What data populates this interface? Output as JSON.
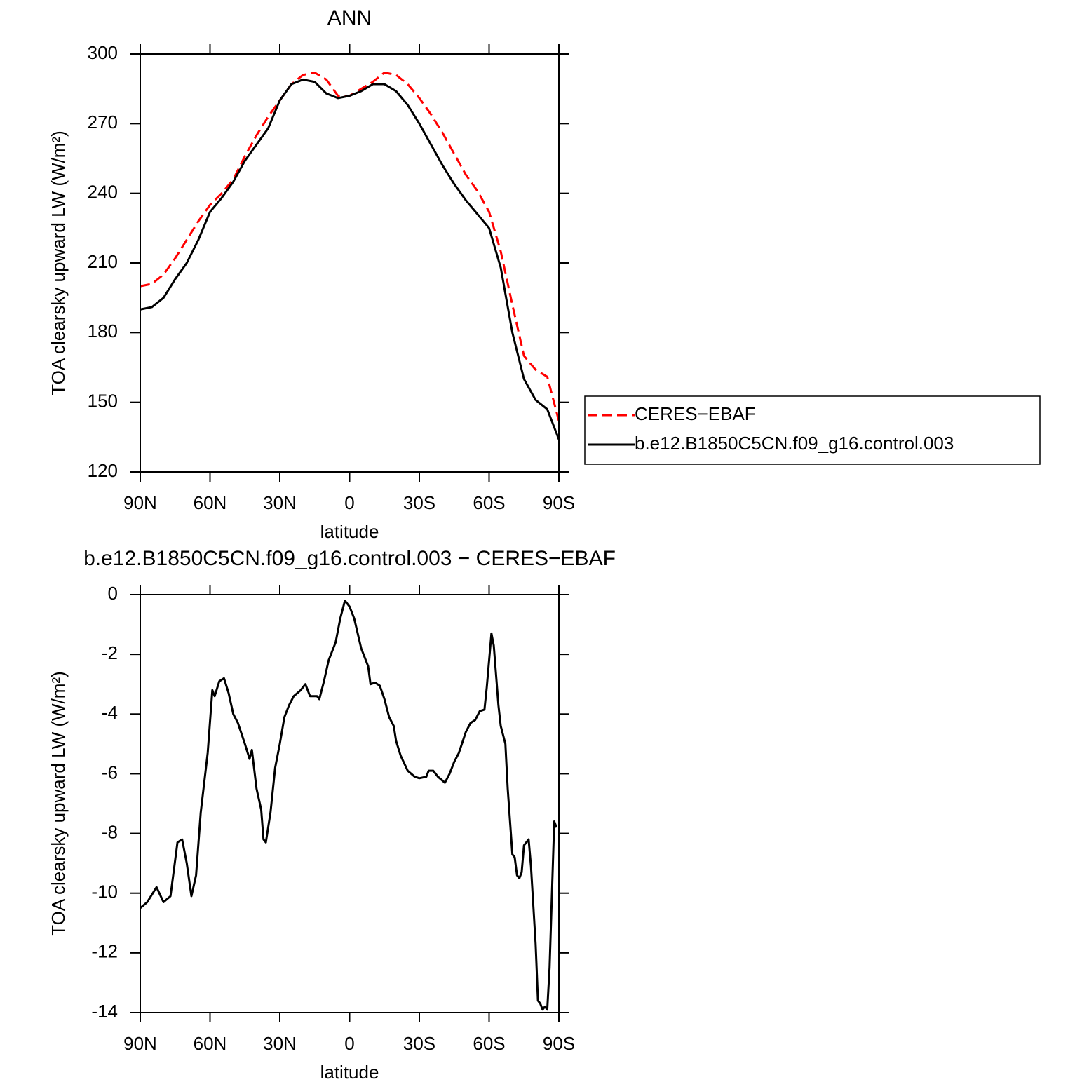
{
  "chart_data": [
    {
      "type": "line",
      "title": "ANN",
      "xlabel": "latitude",
      "ylabel": "TOA clearsky upward LW (W/m²)",
      "x": [
        90,
        85,
        80,
        75,
        70,
        65,
        60,
        55,
        50,
        45,
        40,
        35,
        30,
        25,
        20,
        15,
        10,
        5,
        0,
        -5,
        -10,
        -15,
        -20,
        -25,
        -30,
        -35,
        -40,
        -45,
        -50,
        -55,
        -60,
        -65,
        -70,
        -75,
        -80,
        -85,
        -90
      ],
      "series": [
        {
          "name": "CERES−EBAF",
          "color": "#ff0000",
          "dash": "dashed",
          "values": [
            200,
            201,
            205,
            212,
            220,
            228,
            235,
            240,
            246,
            256,
            265,
            273,
            280,
            287,
            291,
            292,
            289,
            282,
            282,
            285,
            288,
            292,
            291,
            287,
            281,
            274,
            266,
            257,
            248,
            241,
            232,
            215,
            192,
            170,
            164,
            161,
            142
          ]
        },
        {
          "name": "b.e12.B1850C5CN.f09_g16.control.003",
          "color": "#000000",
          "dash": "solid",
          "values": [
            190,
            191,
            195,
            203,
            210,
            220,
            232,
            238,
            245,
            254,
            261,
            268,
            280,
            287,
            289,
            288,
            283,
            281,
            282,
            284,
            287,
            287,
            284,
            278,
            270,
            261,
            252,
            244,
            237,
            231,
            225,
            208,
            180,
            160,
            151,
            147,
            134
          ]
        }
      ],
      "xlim": [
        90,
        -90
      ],
      "xticks": [
        {
          "value": 90,
          "label": "90N"
        },
        {
          "value": 60,
          "label": "60N"
        },
        {
          "value": 30,
          "label": "30N"
        },
        0,
        {
          "value": -30,
          "label": "30S"
        },
        {
          "value": -60,
          "label": "60S"
        },
        {
          "value": -90,
          "label": "90S"
        }
      ],
      "ylim": [
        120,
        300
      ],
      "yticks": [
        120,
        150,
        180,
        210,
        240,
        270,
        300
      ],
      "legend": "right"
    },
    {
      "type": "line",
      "title": "b.e12.B1850C5CN.f09_g16.control.003 − CERES−EBAF",
      "xlabel": "latitude",
      "ylabel": "TOA clearsky upward LW (W/m²)",
      "x": [
        90,
        87,
        83,
        80,
        77,
        74,
        72,
        70,
        68,
        66,
        64,
        61,
        59,
        58,
        56,
        54,
        52,
        50,
        48,
        45,
        43,
        42,
        40,
        38,
        37,
        36,
        34,
        32,
        30,
        28,
        26,
        24,
        21,
        19,
        17,
        14,
        13,
        11,
        9,
        6,
        4,
        2,
        0,
        -2,
        -5,
        -8,
        -9,
        -11,
        -13,
        -15,
        -17,
        -19,
        -20,
        -22,
        -25,
        -28,
        -30,
        -33,
        -34,
        -36,
        -38,
        -41,
        -43,
        -45,
        -47,
        -50,
        -52,
        -54,
        -56,
        -58,
        -59,
        -61,
        -62,
        -64,
        -65,
        -67,
        -68,
        -70,
        -71,
        -72,
        -73,
        -74,
        -75,
        -77,
        -78,
        -80,
        -81,
        -82,
        -83,
        -84,
        -85,
        -86,
        -88,
        -89
      ],
      "values": [
        -10.5,
        -10.3,
        -9.8,
        -10.3,
        -10.1,
        -8.3,
        -8.2,
        -9.0,
        -10.1,
        -9.4,
        -7.3,
        -5.3,
        -3.2,
        -3.4,
        -2.9,
        -2.8,
        -3.3,
        -4.0,
        -4.3,
        -5.0,
        -5.5,
        -5.2,
        -6.5,
        -7.2,
        -8.2,
        -8.3,
        -7.3,
        -5.8,
        -5.0,
        -4.1,
        -3.7,
        -3.4,
        -3.2,
        -3.0,
        -3.4,
        -3.4,
        -3.5,
        -2.9,
        -2.2,
        -1.6,
        -0.8,
        -0.2,
        -0.4,
        -0.8,
        -1.8,
        -2.4,
        -3.0,
        -2.95,
        -3.05,
        -3.5,
        -4.1,
        -4.4,
        -4.9,
        -5.4,
        -5.9,
        -6.1,
        -6.15,
        -6.1,
        -5.9,
        -5.9,
        -6.1,
        -6.3,
        -6.0,
        -5.6,
        -5.3,
        -4.6,
        -4.3,
        -4.2,
        -3.9,
        -3.85,
        -3.1,
        -1.3,
        -1.7,
        -3.7,
        -4.4,
        -5.0,
        -6.5,
        -8.7,
        -8.8,
        -9.4,
        -9.5,
        -9.3,
        -8.4,
        -8.2,
        -9.1,
        -11.7,
        -13.6,
        -13.7,
        -13.9,
        -13.8,
        -13.9,
        -12.5,
        -7.6,
        -7.8
      ],
      "color": "#000000",
      "xlim": [
        90,
        -90
      ],
      "xticks": [
        {
          "value": 90,
          "label": "90N"
        },
        {
          "value": 60,
          "label": "60N"
        },
        {
          "value": 30,
          "label": "30N"
        },
        0,
        {
          "value": -30,
          "label": "30S"
        },
        {
          "value": -60,
          "label": "60S"
        },
        {
          "value": -90,
          "label": "90S"
        }
      ],
      "ylim": [
        -14,
        0
      ],
      "yticks": [
        -14,
        -12,
        -10,
        -8,
        -6,
        -4,
        -2,
        0
      ]
    }
  ]
}
